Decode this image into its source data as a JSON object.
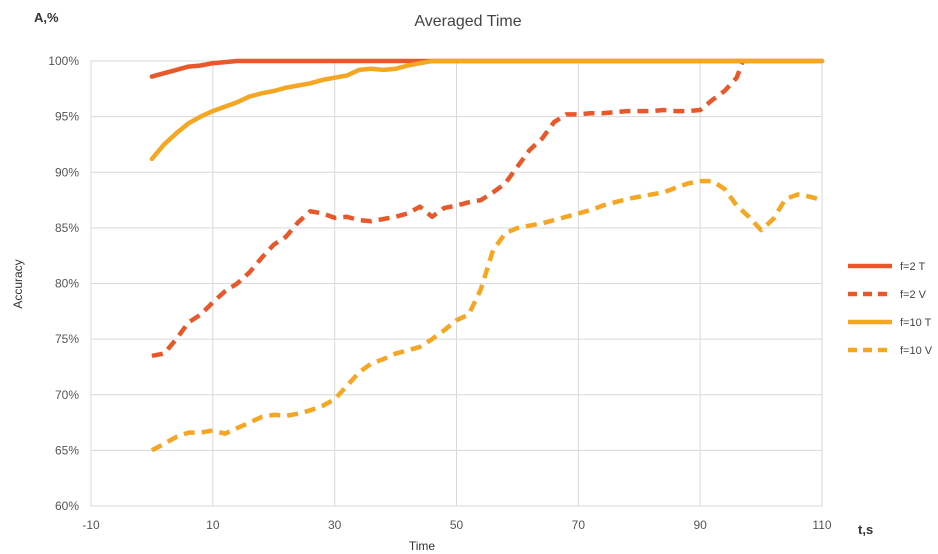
{
  "chart_data": {
    "type": "line",
    "title": "Averaged Time",
    "xlabel": "Time",
    "ylabel": "Accuracy",
    "x_unit_label": "t,s",
    "y_unit_label": "A,%",
    "xlim": [
      -10,
      110
    ],
    "ylim": [
      60,
      100
    ],
    "x_ticks": [
      -10,
      10,
      30,
      50,
      70,
      90,
      110
    ],
    "y_ticks": [
      60,
      65,
      70,
      75,
      80,
      85,
      90,
      95,
      100
    ],
    "y_tick_labels": [
      "60%",
      "65%",
      "70%",
      "75%",
      "80%",
      "85%",
      "90%",
      "95%",
      "100%"
    ],
    "grid": true,
    "legend_position": "right",
    "series": [
      {
        "name": "f=2 T",
        "color": "#E8582A",
        "style": "solid",
        "points": [
          [
            0,
            98.6
          ],
          [
            2,
            98.9
          ],
          [
            4,
            99.2
          ],
          [
            6,
            99.5
          ],
          [
            8,
            99.6
          ],
          [
            10,
            99.8
          ],
          [
            12,
            99.9
          ],
          [
            14,
            100
          ],
          [
            20,
            100
          ],
          [
            40,
            100
          ],
          [
            60,
            100
          ],
          [
            80,
            100
          ],
          [
            100,
            100
          ],
          [
            110,
            100
          ]
        ]
      },
      {
        "name": "f=2 V",
        "color": "#E8582A",
        "style": "dashed",
        "points": [
          [
            0,
            73.5
          ],
          [
            2,
            73.7
          ],
          [
            4,
            75
          ],
          [
            6,
            76.5
          ],
          [
            8,
            77.2
          ],
          [
            10,
            78.3
          ],
          [
            12,
            79.3
          ],
          [
            14,
            80
          ],
          [
            16,
            81
          ],
          [
            18,
            82.3
          ],
          [
            20,
            83.5
          ],
          [
            22,
            84.2
          ],
          [
            24,
            85.5
          ],
          [
            26,
            86.5
          ],
          [
            28,
            86.3
          ],
          [
            30,
            85.9
          ],
          [
            32,
            86
          ],
          [
            34,
            85.7
          ],
          [
            36,
            85.6
          ],
          [
            38,
            85.8
          ],
          [
            40,
            86
          ],
          [
            42,
            86.3
          ],
          [
            44,
            86.9
          ],
          [
            46,
            86
          ],
          [
            48,
            86.8
          ],
          [
            50,
            87
          ],
          [
            52,
            87.3
          ],
          [
            54,
            87.5
          ],
          [
            56,
            88.2
          ],
          [
            58,
            89
          ],
          [
            60,
            90.5
          ],
          [
            62,
            92
          ],
          [
            64,
            93
          ],
          [
            66,
            94.5
          ],
          [
            68,
            95.2
          ],
          [
            70,
            95.2
          ],
          [
            72,
            95.3
          ],
          [
            74,
            95.3
          ],
          [
            76,
            95.4
          ],
          [
            78,
            95.5
          ],
          [
            80,
            95.5
          ],
          [
            82,
            95.5
          ],
          [
            84,
            95.6
          ],
          [
            86,
            95.5
          ],
          [
            88,
            95.5
          ],
          [
            90,
            95.6
          ],
          [
            92,
            96.5
          ],
          [
            94,
            97.3
          ],
          [
            96,
            98.5
          ],
          [
            97,
            100
          ]
        ]
      },
      {
        "name": "f=10 T",
        "color": "#F5A623",
        "style": "solid",
        "points": [
          [
            0,
            91.2
          ],
          [
            2,
            92.5
          ],
          [
            4,
            93.5
          ],
          [
            6,
            94.4
          ],
          [
            8,
            95
          ],
          [
            10,
            95.5
          ],
          [
            12,
            95.9
          ],
          [
            14,
            96.3
          ],
          [
            16,
            96.8
          ],
          [
            18,
            97.1
          ],
          [
            20,
            97.3
          ],
          [
            22,
            97.6
          ],
          [
            24,
            97.8
          ],
          [
            26,
            98
          ],
          [
            28,
            98.3
          ],
          [
            30,
            98.5
          ],
          [
            32,
            98.7
          ],
          [
            34,
            99.2
          ],
          [
            36,
            99.3
          ],
          [
            38,
            99.2
          ],
          [
            40,
            99.3
          ],
          [
            42,
            99.6
          ],
          [
            44,
            99.8
          ],
          [
            46,
            100
          ],
          [
            60,
            100
          ],
          [
            80,
            100
          ],
          [
            100,
            100
          ],
          [
            110,
            100
          ]
        ]
      },
      {
        "name": "f=10 V",
        "color": "#F5A623",
        "style": "dashed",
        "points": [
          [
            0,
            65
          ],
          [
            2,
            65.6
          ],
          [
            4,
            66.2
          ],
          [
            6,
            66.6
          ],
          [
            8,
            66.6
          ],
          [
            10,
            66.8
          ],
          [
            12,
            66.5
          ],
          [
            14,
            67
          ],
          [
            16,
            67.5
          ],
          [
            18,
            68
          ],
          [
            20,
            68.2
          ],
          [
            22,
            68.1
          ],
          [
            24,
            68.3
          ],
          [
            26,
            68.6
          ],
          [
            28,
            69
          ],
          [
            30,
            69.6
          ],
          [
            32,
            70.8
          ],
          [
            34,
            72
          ],
          [
            36,
            72.8
          ],
          [
            38,
            73.2
          ],
          [
            40,
            73.7
          ],
          [
            42,
            74
          ],
          [
            44,
            74.3
          ],
          [
            46,
            75
          ],
          [
            48,
            75.8
          ],
          [
            50,
            76.7
          ],
          [
            52,
            77.2
          ],
          [
            54,
            79.5
          ],
          [
            56,
            83
          ],
          [
            58,
            84.5
          ],
          [
            60,
            85
          ],
          [
            62,
            85.2
          ],
          [
            64,
            85.4
          ],
          [
            66,
            85.7
          ],
          [
            68,
            86
          ],
          [
            70,
            86.3
          ],
          [
            72,
            86.6
          ],
          [
            74,
            87
          ],
          [
            76,
            87.3
          ],
          [
            78,
            87.6
          ],
          [
            80,
            87.8
          ],
          [
            82,
            88
          ],
          [
            84,
            88.2
          ],
          [
            86,
            88.6
          ],
          [
            88,
            89
          ],
          [
            90,
            89.2
          ],
          [
            92,
            89.2
          ],
          [
            94,
            88.5
          ],
          [
            96,
            87
          ],
          [
            98,
            86
          ],
          [
            100,
            84.8
          ],
          [
            102,
            85.8
          ],
          [
            104,
            87.6
          ],
          [
            106,
            88
          ],
          [
            108,
            87.8
          ],
          [
            110,
            87.5
          ]
        ]
      }
    ]
  }
}
